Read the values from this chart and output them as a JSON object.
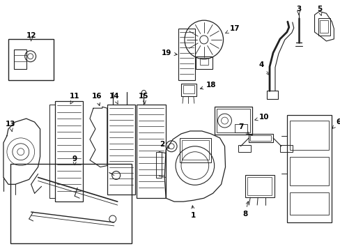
{
  "background_color": "#ffffff",
  "line_color": "#222222",
  "label_color": "#000000",
  "figsize": [
    4.89,
    3.6
  ],
  "dpi": 100
}
